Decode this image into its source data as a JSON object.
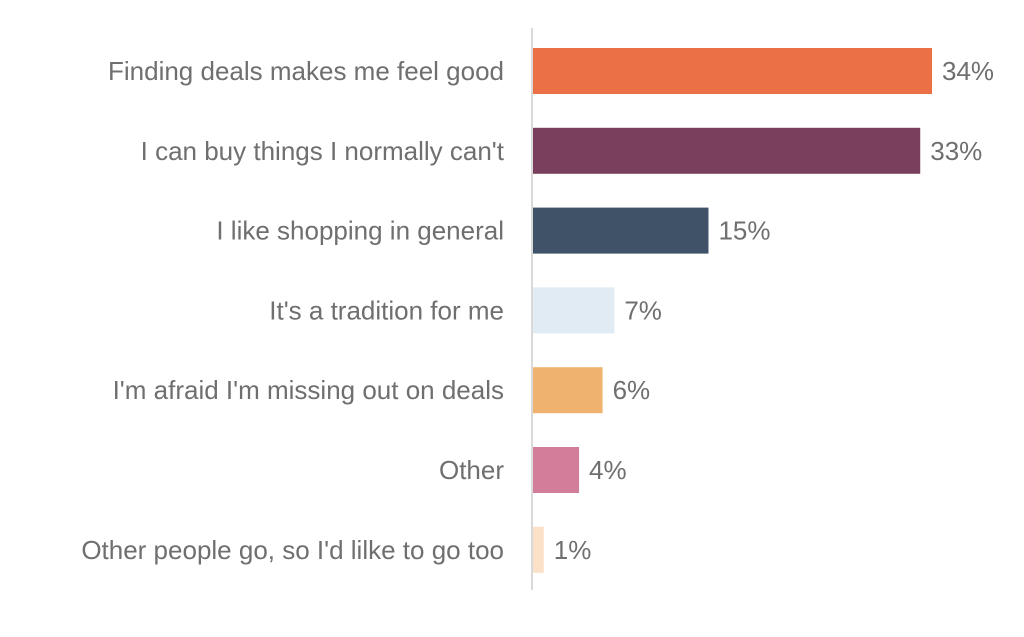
{
  "chart_data": {
    "type": "bar",
    "orientation": "horizontal",
    "title": "",
    "xlabel": "",
    "ylabel": "",
    "categories": [
      "Finding deals makes me feel good",
      "I can buy things I normally can't",
      "I like shopping in general",
      "It's a tradition for me",
      "I'm afraid I'm missing out on deals",
      "Other",
      "Other people go, so I'd lilke to go too"
    ],
    "values": [
      34,
      33,
      15,
      7,
      6,
      4,
      1
    ],
    "value_labels": [
      "34%",
      "33%",
      "15%",
      "7%",
      "6%",
      "4%",
      "1%"
    ],
    "colors": [
      "#ec7046",
      "#7b3f5e",
      "#3f5268",
      "#e0ebf3",
      "#efb36f",
      "#d27e9b",
      "#fbe1c7"
    ],
    "xlim": [
      0,
      34
    ],
    "grid": false,
    "legend": "none",
    "axis_color": "#d9d9d9"
  }
}
